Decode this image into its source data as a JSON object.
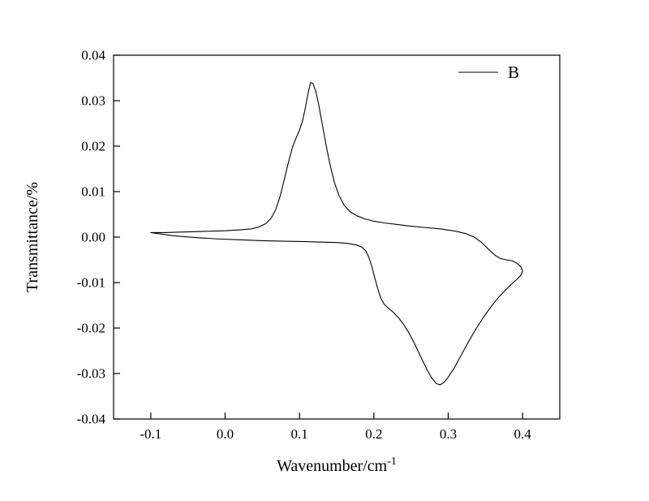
{
  "figure": {
    "background": "#ffffff",
    "line_color": "#000000",
    "legend": {
      "label": "B"
    }
  },
  "chart_data": {
    "type": "line",
    "title": "",
    "xlabel": "Wavenumber/cm",
    "xlabel_superscript": "-1",
    "ylabel": "Transmittance/%",
    "xlim": [
      -0.15,
      0.45
    ],
    "ylim": [
      -0.04,
      0.04
    ],
    "x_ticks": [
      -0.1,
      0.0,
      0.1,
      0.2,
      0.3,
      0.4
    ],
    "x_tick_labels": [
      "-0.1",
      "0.0",
      "0.1",
      "0.2",
      "0.3",
      "0.4"
    ],
    "y_ticks": [
      -0.04,
      -0.03,
      -0.02,
      -0.01,
      0.0,
      0.01,
      0.02,
      0.03,
      0.04
    ],
    "y_tick_labels": [
      "-0.04",
      "-0.03",
      "-0.02",
      "-0.01",
      "0.00",
      "0.01",
      "0.02",
      "0.03",
      "0.04"
    ],
    "grid": false,
    "legend_position": "top-right-inside",
    "series": [
      {
        "name": "B",
        "color": "#000000",
        "closed_loop": true,
        "points": [
          [
            -0.1,
            0.001
          ],
          [
            -0.08,
            0.001
          ],
          [
            -0.06,
            0.0011
          ],
          [
            -0.04,
            0.0012
          ],
          [
            -0.02,
            0.0013
          ],
          [
            0.0,
            0.0014
          ],
          [
            0.02,
            0.0016
          ],
          [
            0.035,
            0.0018
          ],
          [
            0.045,
            0.0022
          ],
          [
            0.055,
            0.003
          ],
          [
            0.062,
            0.0042
          ],
          [
            0.068,
            0.006
          ],
          [
            0.074,
            0.009
          ],
          [
            0.08,
            0.013
          ],
          [
            0.086,
            0.017
          ],
          [
            0.091,
            0.02
          ],
          [
            0.096,
            0.022
          ],
          [
            0.1,
            0.0235
          ],
          [
            0.104,
            0.0255
          ],
          [
            0.108,
            0.0285
          ],
          [
            0.112,
            0.032
          ],
          [
            0.115,
            0.034
          ],
          [
            0.118,
            0.0338
          ],
          [
            0.122,
            0.032
          ],
          [
            0.126,
            0.029
          ],
          [
            0.131,
            0.0245
          ],
          [
            0.136,
            0.02
          ],
          [
            0.141,
            0.016
          ],
          [
            0.147,
            0.012
          ],
          [
            0.153,
            0.0092
          ],
          [
            0.16,
            0.007
          ],
          [
            0.168,
            0.0056
          ],
          [
            0.177,
            0.0047
          ],
          [
            0.188,
            0.004
          ],
          [
            0.2,
            0.0035
          ],
          [
            0.215,
            0.0031
          ],
          [
            0.23,
            0.0028
          ],
          [
            0.25,
            0.0024
          ],
          [
            0.27,
            0.0021
          ],
          [
            0.29,
            0.0018
          ],
          [
            0.31,
            0.0013
          ],
          [
            0.325,
            0.0007
          ],
          [
            0.335,
            0.0
          ],
          [
            0.345,
            -0.0012
          ],
          [
            0.355,
            -0.0028
          ],
          [
            0.363,
            -0.004
          ],
          [
            0.37,
            -0.0047
          ],
          [
            0.378,
            -0.005
          ],
          [
            0.386,
            -0.0052
          ],
          [
            0.393,
            -0.0058
          ],
          [
            0.398,
            -0.0066
          ],
          [
            0.4,
            -0.0075
          ],
          [
            0.398,
            -0.0083
          ],
          [
            0.393,
            -0.0092
          ],
          [
            0.386,
            -0.0102
          ],
          [
            0.378,
            -0.0115
          ],
          [
            0.368,
            -0.0132
          ],
          [
            0.358,
            -0.0152
          ],
          [
            0.348,
            -0.0175
          ],
          [
            0.338,
            -0.02
          ],
          [
            0.328,
            -0.0228
          ],
          [
            0.318,
            -0.0258
          ],
          [
            0.308,
            -0.0288
          ],
          [
            0.3,
            -0.0308
          ],
          [
            0.294,
            -0.032
          ],
          [
            0.289,
            -0.0325
          ],
          [
            0.284,
            -0.0322
          ],
          [
            0.278,
            -0.031
          ],
          [
            0.271,
            -0.029
          ],
          [
            0.263,
            -0.0263
          ],
          [
            0.255,
            -0.0235
          ],
          [
            0.247,
            -0.021
          ],
          [
            0.24,
            -0.0192
          ],
          [
            0.233,
            -0.0177
          ],
          [
            0.226,
            -0.0165
          ],
          [
            0.22,
            -0.0157
          ],
          [
            0.214,
            -0.0148
          ],
          [
            0.209,
            -0.0133
          ],
          [
            0.205,
            -0.0112
          ],
          [
            0.201,
            -0.0088
          ],
          [
            0.197,
            -0.0063
          ],
          [
            0.193,
            -0.0043
          ],
          [
            0.189,
            -0.003
          ],
          [
            0.184,
            -0.0022
          ],
          [
            0.176,
            -0.0017
          ],
          [
            0.165,
            -0.0014
          ],
          [
            0.15,
            -0.0012
          ],
          [
            0.13,
            -0.0011
          ],
          [
            0.11,
            -0.001
          ],
          [
            0.08,
            -0.0009
          ],
          [
            0.05,
            -0.0008
          ],
          [
            0.02,
            -0.0006
          ],
          [
            -0.01,
            -0.0004
          ],
          [
            -0.04,
            -0.0001
          ],
          [
            -0.07,
            0.0003
          ],
          [
            -0.1,
            0.001
          ]
        ]
      }
    ]
  }
}
